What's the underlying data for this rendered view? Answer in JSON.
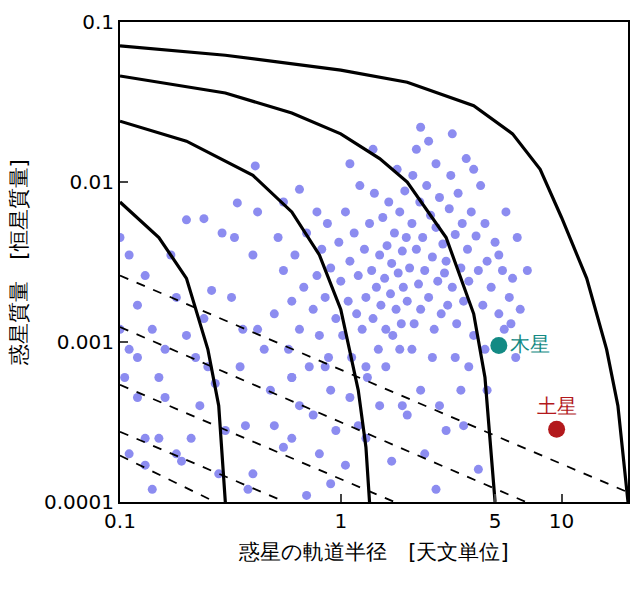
{
  "chart_data": {
    "type": "scatter",
    "x_label": "惑星の軌道半径　[天文単位]",
    "y_label": "惑星質量　[恒星質量]",
    "log": true,
    "xlim": [
      0.1,
      20
    ],
    "ylim": [
      0.0001,
      0.1
    ],
    "xticks": [
      0.1,
      1,
      5,
      10
    ],
    "yticks": [
      0.0001,
      0.001,
      0.01,
      0.1
    ],
    "grid": false,
    "series": [
      {
        "type": "scatter",
        "marker": "circle",
        "color": "#8c8cf0",
        "points": [
          [
            0.1,
            0.0045
          ],
          [
            0.105,
            0.0006
          ],
          [
            0.11,
            0.0009
          ],
          [
            0.12,
            0.0008
          ],
          [
            0.11,
            0.0002
          ],
          [
            0.13,
            0.0026
          ],
          [
            0.12,
            0.0017
          ],
          [
            0.14,
            0.0012
          ],
          [
            0.15,
            0.0006
          ],
          [
            0.16,
            0.00045
          ],
          [
            0.13,
            0.00025
          ],
          [
            0.15,
            0.00025
          ],
          [
            0.17,
            0.0035
          ],
          [
            0.18,
            0.0019
          ],
          [
            0.2,
            0.0058
          ],
          [
            0.2,
            0.0011
          ],
          [
            0.22,
            0.0008
          ],
          [
            0.23,
            0.0004
          ],
          [
            0.24,
            0.0014
          ],
          [
            0.26,
            0.0021
          ],
          [
            0.27,
            0.00055
          ],
          [
            0.29,
            0.0048
          ],
          [
            0.3,
            0.00028
          ],
          [
            0.28,
            0.00015
          ],
          [
            0.19,
            0.00018
          ],
          [
            0.14,
            0.00012
          ],
          [
            0.11,
            0.0035
          ],
          [
            0.16,
            0.0009
          ],
          [
            0.21,
            0.00025
          ],
          [
            0.25,
            0.0007
          ],
          [
            0.12,
            0.00045
          ],
          [
            0.1,
            0.0012
          ],
          [
            0.18,
            0.0002
          ],
          [
            0.13,
            0.00017
          ],
          [
            0.24,
            0.0059
          ],
          [
            0.34,
            0.0074
          ],
          [
            0.41,
            0.0126
          ],
          [
            0.32,
            0.0019
          ],
          [
            0.35,
            0.0007
          ],
          [
            0.37,
            0.0003
          ],
          [
            0.4,
            0.00015
          ],
          [
            0.42,
            0.0012
          ],
          [
            0.45,
            0.0009
          ],
          [
            0.48,
            0.0005
          ],
          [
            0.5,
            0.0003
          ],
          [
            0.55,
            0.00022
          ],
          [
            0.6,
            0.0006
          ],
          [
            0.65,
            0.0004
          ],
          [
            0.7,
            0.00011
          ],
          [
            0.75,
            0.00035
          ],
          [
            0.8,
            0.0002
          ],
          [
            0.85,
            0.0007
          ],
          [
            0.9,
            0.0005
          ],
          [
            0.95,
            0.00028
          ],
          [
            1.05,
            0.00017
          ],
          [
            1.1,
            0.00045
          ],
          [
            1.2,
            0.0003
          ],
          [
            0.38,
            0.00012
          ],
          [
            0.33,
            0.0045
          ],
          [
            0.36,
            0.0012
          ],
          [
            0.42,
            0.0065
          ],
          [
            0.4,
            0.0035
          ],
          [
            0.5,
            0.0015
          ],
          [
            0.52,
            0.0045
          ],
          [
            0.55,
            0.0028
          ],
          [
            0.58,
            0.0009
          ],
          [
            0.6,
            0.0018
          ],
          [
            0.62,
            0.0035
          ],
          [
            0.65,
            0.0012
          ],
          [
            0.68,
            0.0022
          ],
          [
            0.7,
            0.0048
          ],
          [
            0.72,
            0.0007
          ],
          [
            0.75,
            0.0016
          ],
          [
            0.78,
            0.0026
          ],
          [
            0.8,
            0.0011
          ],
          [
            0.82,
            0.0038
          ],
          [
            0.85,
            0.0019
          ],
          [
            0.88,
            0.0008
          ],
          [
            0.9,
            0.0029
          ],
          [
            0.55,
            0.0075
          ],
          [
            0.65,
            0.009
          ],
          [
            0.78,
            0.0065
          ],
          [
            0.87,
            0.0055
          ],
          [
            0.6,
            0.0006
          ],
          [
            0.95,
            0.0014
          ],
          [
            0.98,
            0.0042
          ],
          [
            1.0,
            0.0024
          ],
          [
            1.02,
            0.0011
          ],
          [
            1.05,
            0.0065
          ],
          [
            1.08,
            0.0018
          ],
          [
            1.1,
            0.0032
          ],
          [
            1.12,
            0.0008
          ],
          [
            1.15,
            0.0048
          ],
          [
            1.18,
            0.0015
          ],
          [
            1.2,
            0.0026
          ],
          [
            1.22,
            0.0095
          ],
          [
            1.25,
            0.0012
          ],
          [
            1.28,
            0.0038
          ],
          [
            1.3,
            0.0019
          ],
          [
            1.32,
            0.0006
          ],
          [
            1.35,
            0.0055
          ],
          [
            1.38,
            0.0028
          ],
          [
            1.4,
            0.0014
          ],
          [
            1.42,
            0.0085
          ],
          [
            1.45,
            0.0022
          ],
          [
            1.48,
            0.0009
          ],
          [
            1.5,
            0.0035
          ],
          [
            1.52,
            0.0017
          ],
          [
            1.55,
            0.006
          ],
          [
            1.58,
            0.0025
          ],
          [
            1.6,
            0.0012
          ],
          [
            1.62,
            0.004
          ],
          [
            1.65,
            0.0075
          ],
          [
            1.68,
            0.002
          ],
          [
            1.7,
            0.0031
          ],
          [
            1.72,
            0.0011
          ],
          [
            1.75,
            0.0048
          ],
          [
            1.78,
            0.0016
          ],
          [
            1.8,
            0.012
          ],
          [
            1.82,
            0.0027
          ],
          [
            1.85,
            0.0065
          ],
          [
            1.88,
            0.0013
          ],
          [
            1.9,
            0.0037
          ],
          [
            1.92,
            0.0022
          ],
          [
            1.95,
            0.0088
          ],
          [
            1.98,
            0.0045
          ],
          [
            1.1,
            0.013
          ],
          [
            1.3,
            0.0007
          ],
          [
            1.6,
            0.0007
          ],
          [
            1.85,
            0.0009
          ],
          [
            1.4,
            0.016
          ],
          [
            2.0,
            0.0018
          ],
          [
            2.05,
            0.0029
          ],
          [
            2.1,
            0.0055
          ],
          [
            2.12,
            0.011
          ],
          [
            2.15,
            0.0013
          ],
          [
            2.2,
            0.0038
          ],
          [
            2.25,
            0.0023
          ],
          [
            2.28,
            0.0075
          ],
          [
            2.3,
            0.0016
          ],
          [
            2.35,
            0.0045
          ],
          [
            2.4,
            0.0028
          ],
          [
            2.45,
            0.0095
          ],
          [
            2.5,
            0.0019
          ],
          [
            2.55,
            0.0062
          ],
          [
            2.6,
            0.0034
          ],
          [
            2.65,
            0.0012
          ],
          [
            2.7,
            0.0052
          ],
          [
            2.75,
            0.0024
          ],
          [
            2.8,
            0.008
          ],
          [
            2.85,
            0.0015
          ],
          [
            2.9,
            0.0041
          ],
          [
            2.95,
            0.0027
          ],
          [
            2.2,
            0.016
          ],
          [
            2.5,
            0.018
          ],
          [
            2.3,
            0.022
          ],
          [
            2.7,
            0.013
          ],
          [
            2.1,
            0.0009
          ],
          [
            2.6,
            0.0008
          ],
          [
            3.0,
            0.0032
          ],
          [
            3.05,
            0.0017
          ],
          [
            3.1,
            0.0068
          ],
          [
            3.15,
            0.011
          ],
          [
            3.2,
            0.0022
          ],
          [
            3.3,
            0.0047
          ],
          [
            3.35,
            0.0013
          ],
          [
            3.4,
            0.0085
          ],
          [
            3.5,
            0.0029
          ],
          [
            3.55,
            0.0055
          ],
          [
            3.6,
            0.0018
          ],
          [
            3.7,
            0.014
          ],
          [
            3.75,
            0.0038
          ],
          [
            3.8,
            0.0024
          ],
          [
            3.9,
            0.0065
          ],
          [
            4.0,
            0.0011
          ],
          [
            4.1,
            0.0046
          ],
          [
            4.2,
            0.0028
          ],
          [
            4.3,
            0.0095
          ],
          [
            4.4,
            0.0017
          ],
          [
            4.5,
            0.0055
          ],
          [
            4.6,
            0.0032
          ],
          [
            4.8,
            0.0022
          ],
          [
            5.0,
            0.0042
          ],
          [
            5.2,
            0.0015
          ],
          [
            5.4,
            0.0028
          ],
          [
            5.6,
            0.0065
          ],
          [
            5.8,
            0.0019
          ],
          [
            3.3,
            0.0008
          ],
          [
            3.8,
            0.0007
          ],
          [
            4.5,
            0.0009
          ],
          [
            3.2,
            0.02
          ],
          [
            4.0,
            0.012
          ],
          [
            5.2,
            0.0035
          ],
          [
            5.5,
            0.0012
          ],
          [
            5.9,
            0.0013
          ],
          [
            6.0,
            0.0025
          ],
          [
            6.3,
            0.0045
          ],
          [
            7.0,
            0.0028
          ],
          [
            6.5,
            0.0016
          ],
          [
            4.6,
            0.0005
          ],
          [
            3.5,
            0.0005
          ],
          [
            2.8,
            0.0004
          ],
          [
            2.3,
            0.0005
          ],
          [
            1.9,
            0.0004
          ],
          [
            6.2,
            0.0008
          ],
          [
            0.6,
            0.00025
          ],
          [
            1.3,
            0.00025
          ],
          [
            1.5,
            0.0004
          ],
          [
            1.7,
            0.00018
          ],
          [
            2.0,
            0.00035
          ],
          [
            2.4,
            0.0002
          ],
          [
            2.7,
            0.00012
          ],
          [
            3.0,
            0.00028
          ],
          [
            3.6,
            0.0003
          ],
          [
            4.2,
            0.00016
          ],
          [
            0.9,
            0.00013
          ]
        ]
      },
      {
        "type": "line",
        "line_style": "solid",
        "color": "#000000",
        "points": [
          [
            0.1,
            0.0075
          ],
          [
            0.15,
            0.0045
          ],
          [
            0.2,
            0.0025
          ],
          [
            0.25,
            0.0009
          ],
          [
            0.28,
            0.0004
          ],
          [
            0.3,
            0.0001
          ]
        ]
      },
      {
        "type": "line",
        "line_style": "solid",
        "color": "#000000",
        "points": [
          [
            0.1,
            0.024
          ],
          [
            0.2,
            0.018
          ],
          [
            0.4,
            0.011
          ],
          [
            0.6,
            0.0065
          ],
          [
            0.8,
            0.0035
          ],
          [
            1.0,
            0.0016
          ],
          [
            1.2,
            0.0005
          ],
          [
            1.3,
            0.00022
          ],
          [
            1.35,
            0.0001
          ]
        ]
      },
      {
        "type": "line",
        "line_style": "solid",
        "color": "#000000",
        "points": [
          [
            0.1,
            0.046
          ],
          [
            0.3,
            0.036
          ],
          [
            0.6,
            0.027
          ],
          [
            1.0,
            0.02
          ],
          [
            1.5,
            0.014
          ],
          [
            2.0,
            0.01
          ],
          [
            3.0,
            0.0045
          ],
          [
            4.0,
            0.0015
          ],
          [
            4.5,
            0.0006
          ],
          [
            5.0,
            0.0001
          ]
        ]
      },
      {
        "type": "line",
        "line_style": "solid",
        "color": "#000000",
        "points": [
          [
            0.1,
            0.071
          ],
          [
            0.3,
            0.062
          ],
          [
            1.0,
            0.05
          ],
          [
            2.0,
            0.042
          ],
          [
            4.0,
            0.03
          ],
          [
            6.0,
            0.02
          ],
          [
            8.0,
            0.012
          ],
          [
            10.0,
            0.006
          ],
          [
            13.0,
            0.0025
          ],
          [
            16.0,
            0.0009
          ],
          [
            18.0,
            0.0004
          ],
          [
            20.0,
            0.0001
          ]
        ]
      },
      {
        "type": "line",
        "line_style": "dashed",
        "color": "#000000",
        "points": [
          [
            0.1,
            0.0026
          ],
          [
            20.0,
            0.000115
          ]
        ]
      },
      {
        "type": "line",
        "line_style": "dashed",
        "color": "#000000",
        "points": [
          [
            0.1,
            0.00124
          ],
          [
            6.9,
            0.0001
          ]
        ]
      },
      {
        "type": "line",
        "line_style": "dashed",
        "color": "#000000",
        "points": [
          [
            0.1,
            0.00054
          ],
          [
            1.75,
            0.0001
          ]
        ]
      },
      {
        "type": "line",
        "line_style": "dashed",
        "color": "#000000",
        "points": [
          [
            0.1,
            0.000275
          ],
          [
            0.56,
            0.0001
          ]
        ]
      },
      {
        "type": "line",
        "line_style": "dashed",
        "color": "#000000",
        "points": [
          [
            0.1,
            0.000195
          ],
          [
            0.27,
            0.0001
          ]
        ]
      },
      {
        "name": "木星",
        "type": "scatter",
        "marker": "circle",
        "color": "#138a84",
        "points": [
          [
            5.2,
            0.00095
          ]
        ]
      },
      {
        "name": "土星",
        "type": "scatter",
        "marker": "circle",
        "color": "#b3191c",
        "points": [
          [
            9.5,
            0.000285
          ]
        ]
      }
    ]
  }
}
